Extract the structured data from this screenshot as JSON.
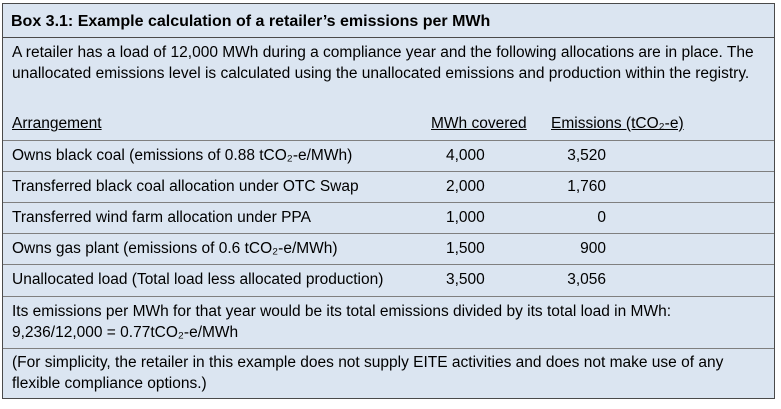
{
  "title": "Box 3.1: Example calculation of a retailer’s emissions per MWh",
  "intro": "A retailer has a load of 12,000 MWh during a compliance year and the following allocations are in place. The unallocated emissions level is calculated using the unallocated emissions and production within the registry.",
  "table": {
    "headers": {
      "arrangement": "Arrangement",
      "mwh": "MWh covered",
      "emissions": "Emissions (tCO₂-e)"
    },
    "rows": [
      {
        "arrangement": "Owns black coal (emissions of 0.88 tCO₂-e/MWh)",
        "mwh": "4,000",
        "emissions": "3,520"
      },
      {
        "arrangement": "Transferred black coal allocation under OTC Swap",
        "mwh": "2,000",
        "emissions": "1,760"
      },
      {
        "arrangement": "Transferred wind farm allocation under PPA",
        "mwh": "1,000",
        "emissions": "0"
      },
      {
        "arrangement": "Owns gas plant (emissions of 0.6 tCO₂-e/MWh)",
        "mwh": "1,500",
        "emissions": "900"
      },
      {
        "arrangement": "Unallocated load (Total load less allocated production)",
        "mwh": "3,500",
        "emissions": "3,056"
      }
    ]
  },
  "conclusion_line1": "Its emissions per MWh for that year would be its total emissions divided by its total load in MWh:",
  "conclusion_line2": "9,236/12,000 = 0.77tCO₂-e/MWh",
  "note": "(For simplicity, the retailer in this example does not supply EITE activities and does not make use of any flexible compliance options.)"
}
